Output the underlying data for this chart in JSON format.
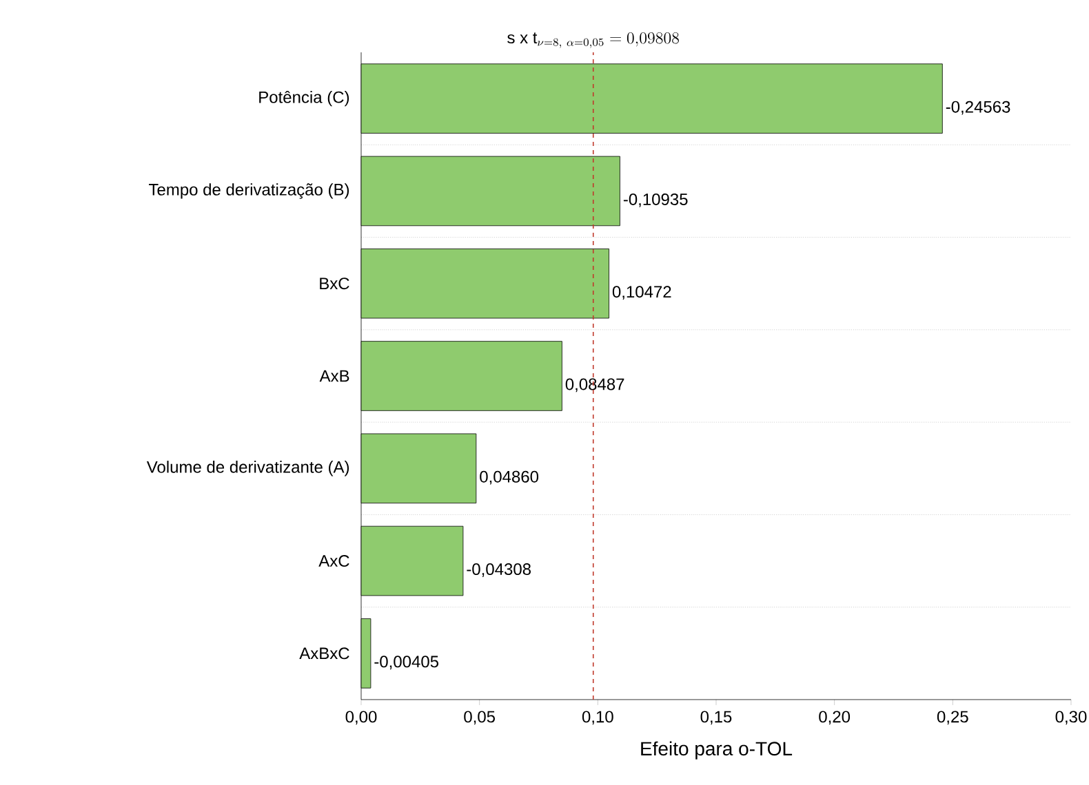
{
  "chart_data": {
    "type": "bar",
    "orientation": "horizontal",
    "xlabel": "Efeito para o-TOL",
    "categories": [
      "Potência (C)",
      "Tempo de derivatização (B)",
      "BxC",
      "AxB",
      "Volume de derivatizante (A)",
      "AxC",
      "AxBxC"
    ],
    "values": [
      0.24563,
      0.10935,
      0.10472,
      0.08487,
      0.0486,
      0.04308,
      0.00405
    ],
    "annotations": [
      {
        "text": "-0,24563",
        "x": 0.24563,
        "y": "Potência (C)"
      },
      {
        "text": "-0,10935",
        "x": 0.10935,
        "y": "Tempo de derivatização (B)"
      },
      {
        "text": "0,10472",
        "x": 0.10472,
        "y": "BxC"
      },
      {
        "text": "0,08487",
        "x": 0.08487,
        "y": "AxB"
      },
      {
        "text": "0,04860",
        "x": 0.0486,
        "y": "Volume de derivatizante (A)"
      },
      {
        "text": "-0,04308",
        "x": 0.04308,
        "y": "AxC"
      },
      {
        "text": "-0,00405",
        "x": 0.00405,
        "y": "AxBxC"
      }
    ],
    "color": "#8fcb6e",
    "xlim": [
      0,
      0.3
    ],
    "xticks": [
      {
        "value": 0,
        "label": "0,00"
      },
      {
        "value": 0.05,
        "label": "0,05"
      },
      {
        "value": 0.1,
        "label": "0,10"
      },
      {
        "value": 0.15,
        "label": "0,15"
      },
      {
        "value": 0.2,
        "label": "0,20"
      },
      {
        "value": 0.25,
        "label": "0,25"
      },
      {
        "value": 0.3,
        "label": "0,30"
      }
    ],
    "ref_lines": [
      {
        "axis": "x",
        "value": 0.09808,
        "label": "\\mathrm{s\\ x\\ t}_{\\nu=8,\\ \\alpha=0{,}05} = 0{,}09808",
        "color": "#c0392b",
        "line_style": "dashed"
      }
    ],
    "grid": "y"
  }
}
